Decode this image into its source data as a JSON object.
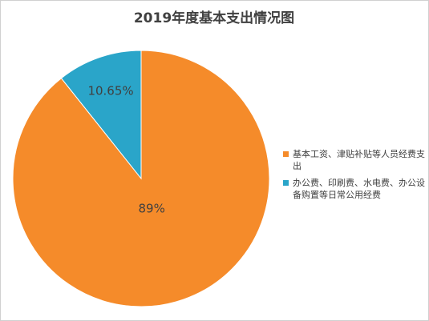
{
  "chart_data": {
    "type": "pie",
    "title": "2019年度基本支出情况图",
    "categories": [
      "基本工资、津贴补贴等人员经费支出",
      "办公费、印刷费、水电费、办公设备购置等日常公用经费"
    ],
    "values": [
      89,
      10.65
    ],
    "value_labels": [
      "89%",
      "10.65%"
    ],
    "colors": [
      "#f58b2a",
      "#2aa5c9"
    ],
    "legend": "right"
  }
}
